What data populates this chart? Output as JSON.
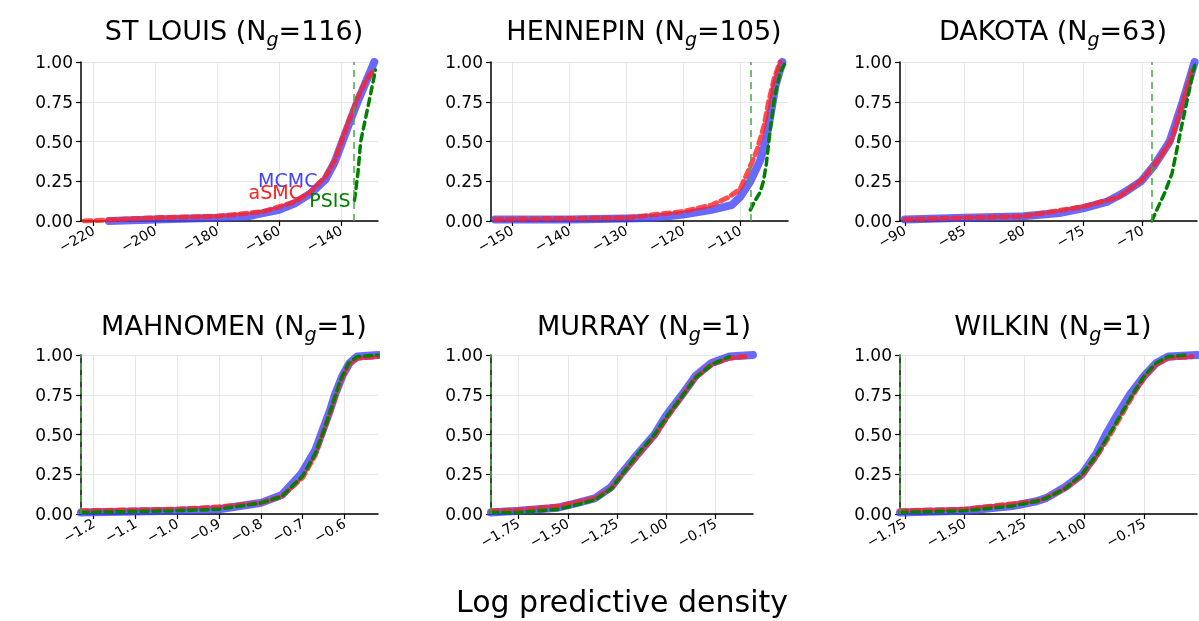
{
  "chart_data": [
    {
      "type": "line",
      "title": "ST LOUIS (N$_{g}$=116)",
      "xlim": [
        -224,
        -128
      ],
      "xticks": [
        {
          "value": -220,
          "label": "−220"
        },
        {
          "value": -200,
          "label": "−200"
        },
        {
          "value": -180,
          "label": "−180"
        },
        {
          "value": -160,
          "label": "−160"
        },
        {
          "value": -140,
          "label": "−140"
        }
      ],
      "ylim": [
        0,
        1
      ],
      "yticks": [
        {
          "value": 0,
          "label": "0.00"
        },
        {
          "value": 0.25,
          "label": "0.25"
        },
        {
          "value": 0.5,
          "label": "0.50"
        },
        {
          "value": 0.75,
          "label": "0.75"
        },
        {
          "value": 1,
          "label": "1.00"
        }
      ],
      "grid": true,
      "ref_lines": [
        {
          "axis": "x",
          "value": -135.7,
          "color": "#44aa44",
          "line_style": "dashed"
        }
      ],
      "series": [
        {
          "name": "MCMC",
          "color": "#4444ff",
          "line_style": "solid",
          "x": [
            -215,
            -200,
            -180,
            -170,
            -160,
            -155,
            -150,
            -145,
            -142,
            -139.5,
            -137,
            -134.6,
            -132,
            -129.2
          ],
          "values": [
            0,
            0.01,
            0.02,
            0.03,
            0.07,
            0.11,
            0.17,
            0.26,
            0.37,
            0.5,
            0.63,
            0.75,
            0.87,
            1
          ]
        },
        {
          "name": "aSMC",
          "color": "#ff2020",
          "line_style": "dashed",
          "x": [
            -223,
            -200,
            -180,
            -165,
            -155,
            -150,
            -145,
            -142,
            -139.5,
            -137,
            -134.5,
            -132,
            -129.5
          ],
          "values": [
            0,
            0.02,
            0.03,
            0.06,
            0.12,
            0.18,
            0.28,
            0.38,
            0.52,
            0.65,
            0.78,
            0.88,
            0.95
          ]
        },
        {
          "name": "PSIS",
          "color": "#008000",
          "line_style": "dashed",
          "x": [
            -135.6,
            -134.5,
            -133.6,
            -130.9,
            -128.8
          ],
          "values": [
            0.13,
            0.3,
            0.5,
            0.75,
            0.95
          ]
        }
      ]
    },
    {
      "type": "line",
      "title": "HENNEPIN (N$_{g}$=105)",
      "xlim": [
        -153.7,
        -101.6
      ],
      "xticks": [
        {
          "value": -150,
          "label": "−150"
        },
        {
          "value": -140,
          "label": "−140"
        },
        {
          "value": -130,
          "label": "−130"
        },
        {
          "value": -120,
          "label": "−120"
        },
        {
          "value": -110,
          "label": "−110"
        }
      ],
      "ylim": [
        0,
        1
      ],
      "yticks": [
        {
          "value": 0,
          "label": "0.00"
        },
        {
          "value": 0.25,
          "label": "0.25"
        },
        {
          "value": 0.5,
          "label": "0.50"
        },
        {
          "value": 0.75,
          "label": "0.75"
        },
        {
          "value": 1,
          "label": "1.00"
        }
      ],
      "grid": true,
      "ref_lines": [
        {
          "axis": "x",
          "value": -108.1,
          "color": "#44aa44",
          "line_style": "dashed"
        }
      ],
      "series": [
        {
          "color": "#4444ff",
          "line_style": "solid",
          "x": [
            -153,
            -140,
            -130,
            -125,
            -120,
            -115,
            -111.5,
            -110,
            -108.2,
            -106.5,
            -105.5,
            -104.5,
            -103.8,
            -102.6
          ],
          "values": [
            0.01,
            0.01,
            0.015,
            0.02,
            0.04,
            0.07,
            0.1,
            0.15,
            0.25,
            0.38,
            0.5,
            0.7,
            0.85,
            1
          ]
        },
        {
          "color": "#ff2020",
          "line_style": "dashed",
          "x": [
            -153,
            -130,
            -120,
            -115,
            -112,
            -110,
            -108.5,
            -107,
            -105.8,
            -105,
            -104,
            -103
          ],
          "values": [
            0.01,
            0.02,
            0.06,
            0.1,
            0.15,
            0.2,
            0.32,
            0.45,
            0.6,
            0.75,
            0.9,
            1
          ]
        },
        {
          "color": "#008000",
          "line_style": "dashed",
          "x": [
            -108.2,
            -107.5,
            -106.5,
            -105.9,
            -105.4,
            -104.8,
            -104,
            -103,
            -102
          ],
          "values": [
            0.07,
            0.12,
            0.18,
            0.25,
            0.36,
            0.55,
            0.77,
            0.93,
            1
          ]
        }
      ]
    },
    {
      "type": "line",
      "title": "DAKOTA (N$_{g}$=63)",
      "xlim": [
        -90.4,
        -65.4
      ],
      "xticks": [
        {
          "value": -90,
          "label": "−90"
        },
        {
          "value": -85,
          "label": "−85"
        },
        {
          "value": -80,
          "label": "−80"
        },
        {
          "value": -75,
          "label": "−75"
        },
        {
          "value": -70,
          "label": "−70"
        }
      ],
      "ylim": [
        0,
        1
      ],
      "yticks": [
        {
          "value": 0,
          "label": "0.00"
        },
        {
          "value": 0.25,
          "label": "0.25"
        },
        {
          "value": 0.5,
          "label": "0.50"
        },
        {
          "value": 0.75,
          "label": "0.75"
        },
        {
          "value": 1,
          "label": "1.00"
        }
      ],
      "grid": true,
      "ref_lines": [
        {
          "axis": "x",
          "value": -69.2,
          "color": "#44aa44",
          "line_style": "dashed"
        }
      ],
      "series": [
        {
          "color": "#4444ff",
          "line_style": "solid",
          "x": [
            -90,
            -85,
            -80,
            -77,
            -75,
            -73,
            -71.5,
            -70.1,
            -69,
            -67.7,
            -66.6,
            -65.6
          ],
          "values": [
            0.01,
            0.02,
            0.03,
            0.05,
            0.08,
            0.12,
            0.18,
            0.25,
            0.35,
            0.5,
            0.75,
            1
          ]
        },
        {
          "color": "#ff2020",
          "line_style": "dashed",
          "x": [
            -90,
            -80,
            -75,
            -72,
            -70,
            -68.5,
            -67.5,
            -66.5,
            -65.7
          ],
          "values": [
            0.01,
            0.03,
            0.09,
            0.15,
            0.26,
            0.4,
            0.52,
            0.77,
            0.97
          ]
        },
        {
          "color": "#008000",
          "line_style": "dashed",
          "x": [
            -69.2,
            -68.6,
            -68.1,
            -67.5,
            -66.6,
            -65.6
          ],
          "values": [
            0,
            0.1,
            0.18,
            0.3,
            0.63,
            0.98
          ]
        }
      ]
    },
    {
      "type": "line",
      "title": "MAHNOMEN (N$_{g}$=1)",
      "xlim": [
        -1.23,
        -0.52
      ],
      "xticks": [
        {
          "value": -1.2,
          "label": "−1.2"
        },
        {
          "value": -1.1,
          "label": "−1.1"
        },
        {
          "value": -1.0,
          "label": "−1.0"
        },
        {
          "value": -0.9,
          "label": "−0.9"
        },
        {
          "value": -0.8,
          "label": "−0.8"
        },
        {
          "value": -0.7,
          "label": "−0.7"
        },
        {
          "value": -0.6,
          "label": "−0.6"
        }
      ],
      "ylim": [
        0,
        1
      ],
      "yticks": [
        {
          "value": 0,
          "label": "0.00"
        },
        {
          "value": 0.25,
          "label": "0.25"
        },
        {
          "value": 0.5,
          "label": "0.50"
        },
        {
          "value": 0.75,
          "label": "0.75"
        },
        {
          "value": 1,
          "label": "1.00"
        }
      ],
      "grid": true,
      "ref_lines": [
        {
          "axis": "x",
          "value": -1.23,
          "color": "#44aa44",
          "line_style": "dashed"
        }
      ],
      "series": [
        {
          "color": "#4444ff",
          "line_style": "solid",
          "x": [
            -1.23,
            -1.0,
            -0.9,
            -0.8,
            -0.75,
            -0.704,
            -0.67,
            -0.656,
            -0.635,
            -0.623,
            -0.605,
            -0.588,
            -0.57,
            -0.52
          ],
          "values": [
            0.01,
            0.02,
            0.03,
            0.07,
            0.12,
            0.25,
            0.4,
            0.5,
            0.65,
            0.75,
            0.87,
            0.95,
            0.99,
            1
          ]
        },
        {
          "color": "#ff2020",
          "line_style": "dashed",
          "x": [
            -1.23,
            -1.0,
            -0.9,
            -0.8,
            -0.75,
            -0.7,
            -0.67,
            -0.65,
            -0.63,
            -0.61,
            -0.59,
            -0.57,
            -0.52
          ],
          "values": [
            0.02,
            0.03,
            0.045,
            0.07,
            0.11,
            0.23,
            0.37,
            0.52,
            0.67,
            0.83,
            0.94,
            0.98,
            0.99
          ]
        },
        {
          "color": "#008000",
          "line_style": "dashed",
          "x": [
            -1.23,
            -1.0,
            -0.9,
            -0.8,
            -0.75,
            -0.7,
            -0.67,
            -0.65,
            -0.63,
            -0.61,
            -0.59,
            -0.57,
            -0.52
          ],
          "values": [
            0.01,
            0.02,
            0.03,
            0.07,
            0.11,
            0.24,
            0.38,
            0.52,
            0.68,
            0.84,
            0.95,
            0.99,
            1
          ]
        }
      ]
    },
    {
      "type": "line",
      "title": "MURRAY (N$_{g}$=1)",
      "xlabel": "Log predictive density",
      "xlim": [
        -1.89,
        -0.56
      ],
      "xticks": [
        {
          "value": -1.75,
          "label": "−1.75"
        },
        {
          "value": -1.5,
          "label": "−1.50"
        },
        {
          "value": -1.25,
          "label": "−1.25"
        },
        {
          "value": -1.0,
          "label": "−1.00"
        },
        {
          "value": -0.75,
          "label": "−0.75"
        }
      ],
      "ylim": [
        0,
        1
      ],
      "yticks": [
        {
          "value": 0,
          "label": "0.00"
        },
        {
          "value": 0.25,
          "label": "0.25"
        },
        {
          "value": 0.5,
          "label": "0.50"
        },
        {
          "value": 0.75,
          "label": "0.75"
        },
        {
          "value": 1,
          "label": "1.00"
        }
      ],
      "grid": true,
      "ref_lines": [
        {
          "axis": "x",
          "value": -1.89,
          "color": "#44aa44",
          "line_style": "dashed"
        }
      ],
      "series": [
        {
          "color": "#4444ff",
          "line_style": "solid",
          "x": [
            -1.89,
            -1.75,
            -1.55,
            -1.45,
            -1.36,
            -1.28,
            -1.23,
            -1.15,
            -1.06,
            -1.0,
            -0.92,
            -0.85,
            -0.77,
            -0.68,
            -0.56
          ],
          "values": [
            0.01,
            0.02,
            0.04,
            0.07,
            0.1,
            0.17,
            0.25,
            0.37,
            0.5,
            0.62,
            0.75,
            0.87,
            0.95,
            0.99,
            1
          ]
        },
        {
          "color": "#ff2020",
          "line_style": "dashed",
          "x": [
            -1.89,
            -1.75,
            -1.55,
            -1.45,
            -1.36,
            -1.28,
            -1.23,
            -1.15,
            -1.06,
            -1.0,
            -0.92,
            -0.85,
            -0.77,
            -0.68,
            -0.6
          ],
          "values": [
            0.02,
            0.025,
            0.05,
            0.075,
            0.1,
            0.16,
            0.24,
            0.36,
            0.49,
            0.6,
            0.74,
            0.86,
            0.94,
            0.98,
            0.99
          ]
        },
        {
          "color": "#008000",
          "line_style": "dashed",
          "x": [
            -1.89,
            -1.75,
            -1.55,
            -1.45,
            -1.36,
            -1.28,
            -1.23,
            -1.15,
            -1.06,
            -1.0,
            -0.92,
            -0.85,
            -0.77,
            -0.68
          ],
          "values": [
            0.01,
            0.01,
            0.03,
            0.06,
            0.09,
            0.16,
            0.24,
            0.37,
            0.5,
            0.61,
            0.74,
            0.86,
            0.94,
            0.99
          ]
        }
      ]
    },
    {
      "type": "line",
      "title": "WILKIN (N$_{g}$=1)",
      "xlim": [
        -1.77,
        -0.53
      ],
      "xticks": [
        {
          "value": -1.75,
          "label": "−1.75"
        },
        {
          "value": -1.5,
          "label": "−1.50"
        },
        {
          "value": -1.25,
          "label": "−1.25"
        },
        {
          "value": -1.0,
          "label": "−1.00"
        },
        {
          "value": -0.75,
          "label": "−0.75"
        }
      ],
      "ylim": [
        0,
        1
      ],
      "yticks": [
        {
          "value": 0,
          "label": "0.00"
        },
        {
          "value": 0.25,
          "label": "0.25"
        },
        {
          "value": 0.5,
          "label": "0.50"
        },
        {
          "value": 0.75,
          "label": "0.75"
        },
        {
          "value": 1,
          "label": "1.00"
        }
      ],
      "grid": true,
      "ref_lines": [
        {
          "axis": "x",
          "value": -1.77,
          "color": "#44aa44",
          "line_style": "dashed"
        }
      ],
      "series": [
        {
          "color": "#4444ff",
          "line_style": "solid",
          "x": [
            -1.77,
            -1.5,
            -1.3,
            -1.2,
            -1.16,
            -1.08,
            -1.01,
            -0.95,
            -0.91,
            -0.86,
            -0.81,
            -0.75,
            -0.7,
            -0.65,
            -0.53
          ],
          "values": [
            0.01,
            0.02,
            0.05,
            0.08,
            0.1,
            0.17,
            0.25,
            0.38,
            0.5,
            0.63,
            0.75,
            0.87,
            0.95,
            0.99,
            1
          ]
        },
        {
          "color": "#ff2020",
          "line_style": "dashed",
          "x": [
            -1.77,
            -1.5,
            -1.3,
            -1.2,
            -1.16,
            -1.08,
            -1.01,
            -0.95,
            -0.9,
            -0.85,
            -0.8,
            -0.75,
            -0.7,
            -0.65,
            -0.55
          ],
          "values": [
            0.02,
            0.03,
            0.065,
            0.08,
            0.1,
            0.16,
            0.24,
            0.36,
            0.48,
            0.61,
            0.74,
            0.86,
            0.94,
            0.98,
            0.99
          ]
        },
        {
          "color": "#008000",
          "line_style": "dashed",
          "x": [
            -1.77,
            -1.5,
            -1.3,
            -1.2,
            -1.16,
            -1.08,
            -1.01,
            -0.95,
            -0.9,
            -0.85,
            -0.8,
            -0.75,
            -0.7,
            -0.65,
            -0.58
          ],
          "values": [
            0.01,
            0.02,
            0.05,
            0.08,
            0.1,
            0.16,
            0.25,
            0.37,
            0.49,
            0.62,
            0.75,
            0.87,
            0.95,
            0.99,
            1
          ]
        }
      ]
    }
  ]
}
